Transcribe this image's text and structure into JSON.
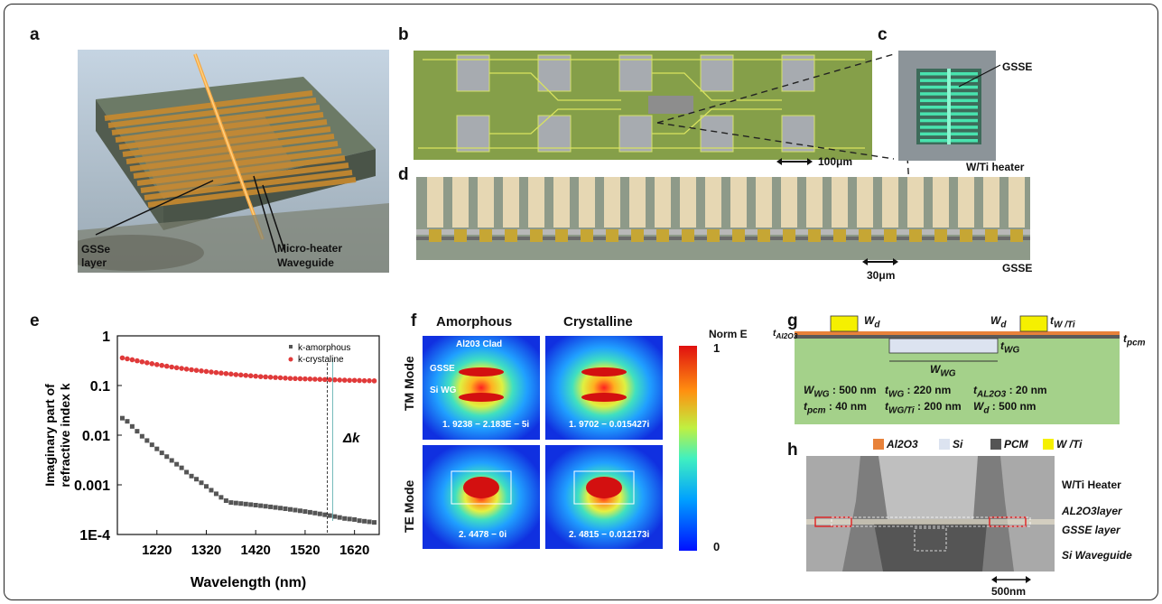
{
  "panels": {
    "a": "a",
    "b": "b",
    "c": "c",
    "d": "d",
    "e": "e",
    "f": "f",
    "g": "g",
    "h": "h"
  },
  "panel_a": {
    "label_gsse_1": "GSSe",
    "label_gsse_2": "layer",
    "label_heater": "Micro-heater",
    "label_waveguide": "Waveguide"
  },
  "panel_b": {
    "scale": "100μm"
  },
  "panel_c": {
    "gsse": "GSSE",
    "heater": "W/Ti heater"
  },
  "panel_d": {
    "scale": "30μm",
    "gsse": "GSSE"
  },
  "panel_f": {
    "col1": "Amorphous",
    "col2": "Crystalline",
    "row1": "TM Mode",
    "row2": "TE Mode",
    "clad": "Al203 Clad",
    "gsse": "GSSE",
    "siwg": "Si WG",
    "val_tm_am": "1. 9238 − 2.183E − 5i",
    "val_tm_cr": "1. 9702 − 0.015427i",
    "val_te_am": "2. 4478 − 0i",
    "val_te_cr": "2. 4815 − 0.012173i",
    "colorbar_title": "Norm E",
    "colorbar_max": "1",
    "colorbar_min": "0"
  },
  "panel_g": {
    "wd_left": "W",
    "wd_right": "W",
    "d_sub": "d",
    "t_wti": "t",
    "wti_sub": "W /Ti",
    "t_al2o3": "t",
    "al2o3_sub": "Al2O3",
    "t_wg": "t",
    "wg_sub": "WG",
    "t_pcm": "t",
    "pcm_sub": "pcm",
    "w_wg": "W",
    "wg_sub2": "WG",
    "params": [
      [
        "W",
        "WG",
        ": 500 nm"
      ],
      [
        "t",
        "WG",
        ": 220 nm"
      ],
      [
        "t",
        "AL2O3",
        ": 20 nm"
      ],
      [
        "t",
        "pcm",
        ": 40 nm"
      ],
      [
        "t",
        "WG/Ti",
        ": 200 nm"
      ],
      [
        "W",
        "d",
        ": 500 nm"
      ]
    ]
  },
  "panel_h": {
    "legend": [
      "Al2O3",
      "Si",
      "PCM",
      "W /Ti"
    ],
    "legend_colors": [
      "#e8823a",
      "#dce3f0",
      "#555555",
      "#f5f000"
    ],
    "heater": "W/Ti Heater",
    "al2o3": "AL2O3layer",
    "gsse": "GSSE layer",
    "siwg": "Si Waveguide",
    "scale": "500nm"
  },
  "chart_data": {
    "type": "scatter",
    "xlabel": "Wavelength (nm)",
    "ylabel_line1": "Imaginary part of",
    "ylabel_line2": "refractive index k",
    "xticks": [
      "1220",
      "1320",
      "1420",
      "1520",
      "1620"
    ],
    "yticks": [
      "1",
      "0.1",
      "0.01",
      "0.001",
      "1E-4"
    ],
    "ylim": [
      0.0001,
      1
    ],
    "xlim": [
      1140,
      1670
    ],
    "log_y": true,
    "legend_position": "top-right",
    "annotation": "Δk",
    "annotation_x": 1565,
    "series": [
      {
        "name": "k-amorphous",
        "color": "#555555",
        "x": [
          1150,
          1160,
          1170,
          1180,
          1190,
          1200,
          1210,
          1220,
          1230,
          1240,
          1250,
          1260,
          1270,
          1280,
          1290,
          1300,
          1310,
          1320,
          1330,
          1340,
          1350,
          1360,
          1370,
          1380,
          1390,
          1400,
          1410,
          1420,
          1430,
          1440,
          1450,
          1460,
          1470,
          1480,
          1490,
          1500,
          1510,
          1520,
          1530,
          1540,
          1550,
          1560,
          1570,
          1580,
          1590,
          1600,
          1610,
          1620,
          1630,
          1640,
          1650,
          1660
        ],
        "y": [
          0.022,
          0.019,
          0.015,
          0.012,
          0.0095,
          0.0078,
          0.0064,
          0.0053,
          0.0044,
          0.0037,
          0.0031,
          0.0026,
          0.0022,
          0.0018,
          0.0015,
          0.0013,
          0.0011,
          0.00093,
          0.00078,
          0.00066,
          0.00056,
          0.00048,
          0.00044,
          0.00043,
          0.00042,
          0.00041,
          0.0004,
          0.00039,
          0.00038,
          0.00037,
          0.00036,
          0.00035,
          0.00034,
          0.00033,
          0.00032,
          0.00031,
          0.0003,
          0.00029,
          0.00028,
          0.00027,
          0.00026,
          0.00025,
          0.00024,
          0.00023,
          0.00022,
          0.00021,
          0.000205,
          0.0002,
          0.00019,
          0.000185,
          0.00018,
          0.000175
        ]
      },
      {
        "name": "k-crystaline",
        "color": "#e03a3a",
        "x": [
          1150,
          1160,
          1170,
          1180,
          1190,
          1200,
          1210,
          1220,
          1230,
          1240,
          1250,
          1260,
          1270,
          1280,
          1290,
          1300,
          1310,
          1320,
          1330,
          1340,
          1350,
          1360,
          1370,
          1380,
          1390,
          1400,
          1410,
          1420,
          1430,
          1440,
          1450,
          1460,
          1470,
          1480,
          1490,
          1500,
          1510,
          1520,
          1530,
          1540,
          1550,
          1560,
          1570,
          1580,
          1590,
          1600,
          1610,
          1620,
          1630,
          1640,
          1650,
          1660
        ],
        "y": [
          0.36,
          0.345,
          0.33,
          0.315,
          0.3,
          0.287,
          0.275,
          0.264,
          0.254,
          0.245,
          0.236,
          0.228,
          0.221,
          0.214,
          0.208,
          0.202,
          0.197,
          0.192,
          0.187,
          0.182,
          0.178,
          0.174,
          0.17,
          0.166,
          0.163,
          0.16,
          0.157,
          0.154,
          0.151,
          0.149,
          0.147,
          0.145,
          0.143,
          0.141,
          0.139,
          0.138,
          0.137,
          0.136,
          0.135,
          0.134,
          0.133,
          0.132,
          0.131,
          0.13,
          0.129,
          0.128,
          0.127,
          0.127,
          0.126,
          0.125,
          0.125,
          0.124
        ]
      }
    ]
  }
}
